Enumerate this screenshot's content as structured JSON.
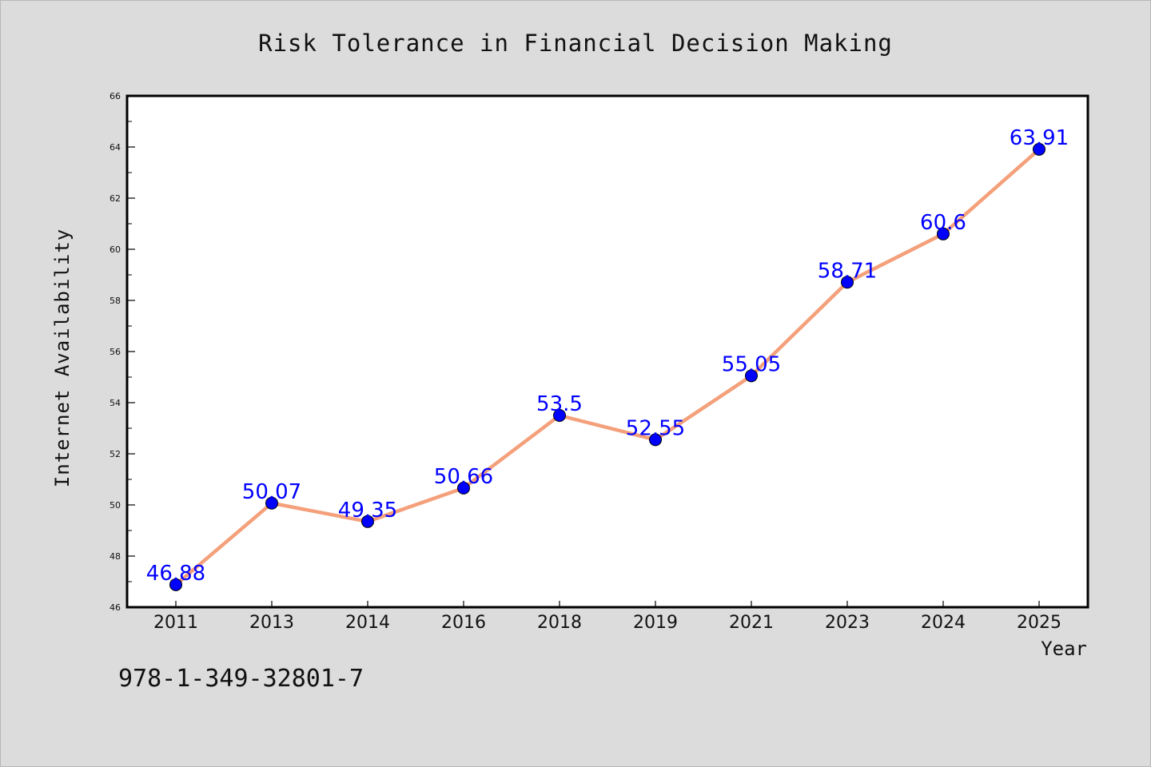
{
  "chart_data": {
    "type": "line",
    "title": "Risk Tolerance in Financial Decision Making",
    "xlabel": "Year",
    "ylabel": "Internet Availability",
    "categories": [
      "2011",
      "2013",
      "2014",
      "2016",
      "2018",
      "2019",
      "2021",
      "2023",
      "2024",
      "2025"
    ],
    "series": [
      {
        "values": [
          46.88,
          50.07,
          49.35,
          50.66,
          53.5,
          52.55,
          55.05,
          58.71,
          60.6,
          63.91
        ],
        "labels": [
          "46.88",
          "50.07",
          "49.35",
          "50.66",
          "53.5",
          "52.55",
          "55.05",
          "58.71",
          "60.6",
          "63.91"
        ],
        "line_color": "#f4a07a",
        "marker_color": "#0000ff",
        "label_color": "#0000ff"
      }
    ],
    "ylim": [
      46,
      66
    ],
    "yticks": [
      "46",
      "48",
      "50",
      "52",
      "54",
      "56",
      "58",
      "60",
      "62",
      "64",
      "66"
    ],
    "grid": false
  },
  "footer": {
    "isbn": "978-1-349-32801-7"
  },
  "colors": {
    "background": "#dcdcdc",
    "plot_background": "#ffffff",
    "axis": "#000000"
  }
}
